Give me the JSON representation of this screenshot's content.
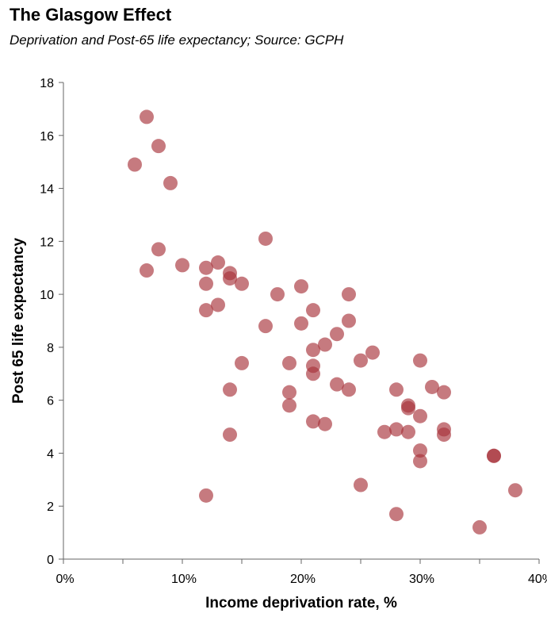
{
  "chart_data": {
    "type": "scatter",
    "title": "The Glasgow Effect",
    "subtitle": "Deprivation and Post-65 life expectancy; Source: GCPH",
    "xlabel": "Income deprivation rate, %",
    "ylabel": "Post 65 life expectancy",
    "xlim": [
      0,
      0.4
    ],
    "ylim": [
      0,
      18
    ],
    "x_ticks": [
      {
        "value": 0,
        "label": "0%"
      },
      {
        "value": 0.1,
        "label": "10%"
      },
      {
        "value": 0.2,
        "label": "20%"
      },
      {
        "value": 0.3,
        "label": "30%"
      },
      {
        "value": 0.4,
        "label": "40%"
      }
    ],
    "y_ticks": [
      {
        "value": 0,
        "label": "0"
      },
      {
        "value": 2,
        "label": "2"
      },
      {
        "value": 4,
        "label": "4"
      },
      {
        "value": 6,
        "label": "6"
      },
      {
        "value": 8,
        "label": "8"
      },
      {
        "value": 10,
        "label": "10"
      },
      {
        "value": 12,
        "label": "12"
      },
      {
        "value": 14,
        "label": "14"
      },
      {
        "value": 16,
        "label": "16"
      },
      {
        "value": 18,
        "label": "18"
      }
    ],
    "point_color": "#a8333b",
    "point_opacity": 0.65,
    "x": [
      0.07,
      0.08,
      0.06,
      0.09,
      0.08,
      0.07,
      0.1,
      0.12,
      0.13,
      0.14,
      0.14,
      0.12,
      0.15,
      0.13,
      0.12,
      0.17,
      0.18,
      0.2,
      0.17,
      0.2,
      0.21,
      0.24,
      0.24,
      0.23,
      0.22,
      0.21,
      0.19,
      0.21,
      0.21,
      0.15,
      0.14,
      0.19,
      0.19,
      0.21,
      0.22,
      0.14,
      0.12,
      0.26,
      0.25,
      0.3,
      0.28,
      0.24,
      0.23,
      0.31,
      0.32,
      0.29,
      0.29,
      0.3,
      0.28,
      0.27,
      0.29,
      0.32,
      0.32,
      0.3,
      0.3,
      0.362,
      0.362,
      0.25,
      0.28,
      0.38,
      0.35
    ],
    "y": [
      16.7,
      15.6,
      14.9,
      14.2,
      11.7,
      10.9,
      11.1,
      11.0,
      11.2,
      10.8,
      10.6,
      10.4,
      10.4,
      9.6,
      9.4,
      12.1,
      10.0,
      10.3,
      8.8,
      8.9,
      9.4,
      10.0,
      9.0,
      8.5,
      8.1,
      7.9,
      7.4,
      7.3,
      7.0,
      7.4,
      6.4,
      6.3,
      5.8,
      5.2,
      5.1,
      4.7,
      2.4,
      7.8,
      7.5,
      7.5,
      6.4,
      6.4,
      6.6,
      6.5,
      6.3,
      5.8,
      5.7,
      5.4,
      4.9,
      4.8,
      4.8,
      4.9,
      4.7,
      4.1,
      3.7,
      3.9,
      3.9,
      2.8,
      1.7,
      2.6,
      1.2
    ]
  }
}
